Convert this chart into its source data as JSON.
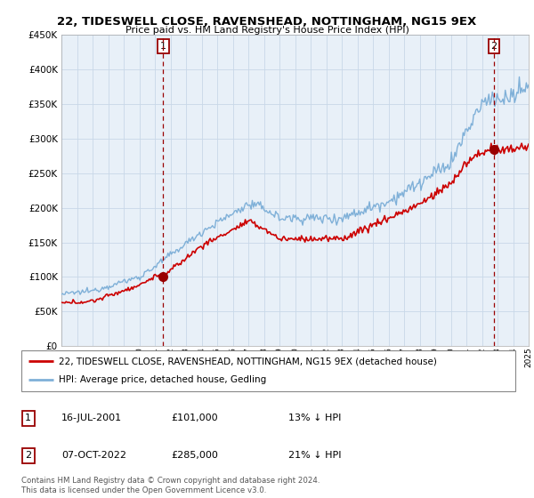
{
  "title": "22, TIDESWELL CLOSE, RAVENSHEAD, NOTTINGHAM, NG15 9EX",
  "subtitle": "Price paid vs. HM Land Registry's House Price Index (HPI)",
  "legend_line1": "22, TIDESWELL CLOSE, RAVENSHEAD, NOTTINGHAM, NG15 9EX (detached house)",
  "legend_line2": "HPI: Average price, detached house, Gedling",
  "sale1_date": "16-JUL-2001",
  "sale1_price": "£101,000",
  "sale1_hpi": "13% ↓ HPI",
  "sale2_date": "07-OCT-2022",
  "sale2_price": "£285,000",
  "sale2_hpi": "21% ↓ HPI",
  "footer": "Contains HM Land Registry data © Crown copyright and database right 2024.\nThis data is licensed under the Open Government Licence v3.0.",
  "ylim": [
    0,
    450000
  ],
  "yticks": [
    0,
    50000,
    100000,
    150000,
    200000,
    250000,
    300000,
    350000,
    400000,
    450000
  ],
  "sale1_year": 2001.54,
  "sale1_value": 101000,
  "sale2_year": 2022.77,
  "sale2_value": 285000,
  "line_color_property": "#cc0000",
  "line_color_hpi": "#7fb0d8",
  "sale_marker_color": "#990000",
  "grid_color": "#c8d8e8",
  "chart_bg": "#e8f0f8",
  "background_color": "#ffffff"
}
